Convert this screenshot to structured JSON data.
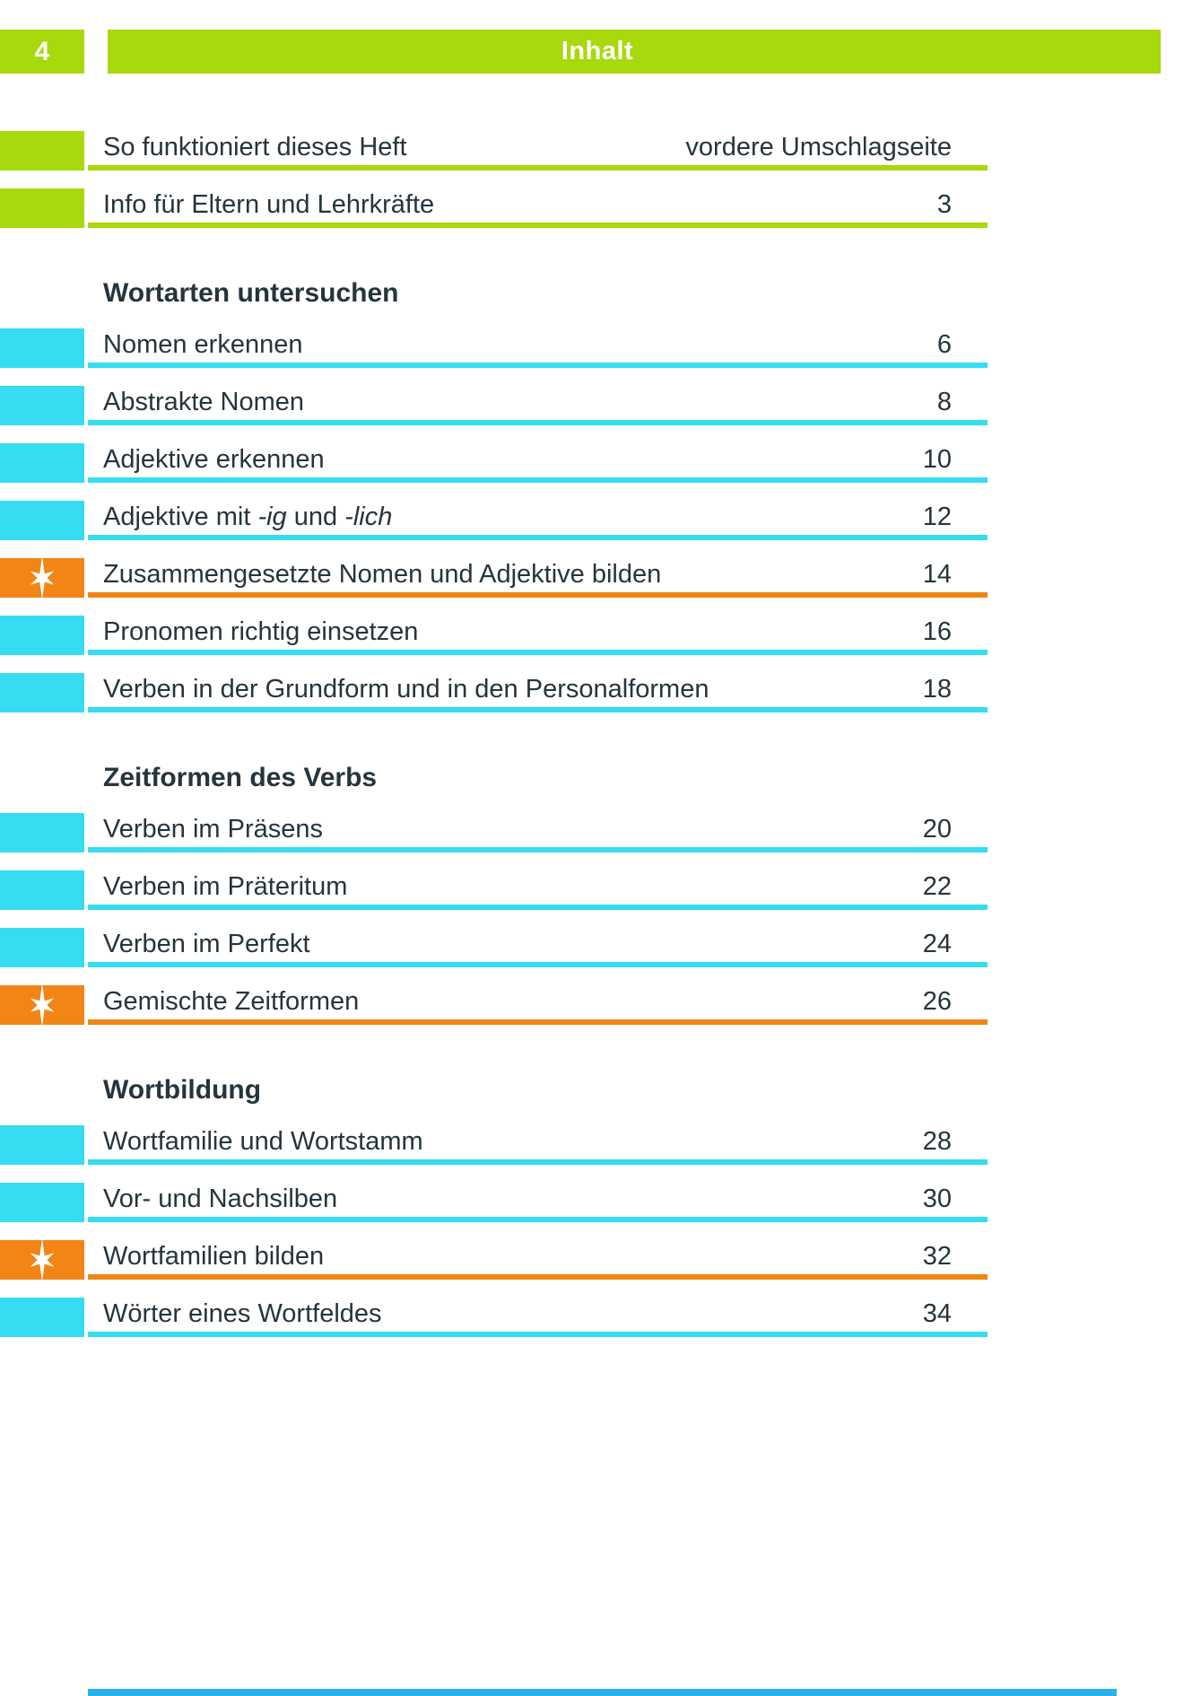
{
  "colors": {
    "green": "#a8d90c",
    "cyan": "#36dcf1",
    "orange": "#f18616",
    "footer_blue": "#2ab2e8",
    "text": "#26343c",
    "white": "#ffffff"
  },
  "header": {
    "page_number": "4",
    "title": "Inhalt"
  },
  "icons": {
    "star": {
      "name": "star-icon",
      "meaning": "sparkle star marking mixed-exercise pages"
    }
  },
  "toc": {
    "intro_rows": [
      {
        "color": "green",
        "star": false,
        "parts": [
          {
            "text": "So funktioniert dieses Heft",
            "italic": false
          }
        ],
        "page": "vordere Umschlagseite"
      },
      {
        "color": "green",
        "star": false,
        "parts": [
          {
            "text": "Info für Eltern und Lehrkräfte",
            "italic": false
          }
        ],
        "page": "3"
      }
    ],
    "sections": [
      {
        "heading": "Wortarten untersuchen",
        "rows": [
          {
            "color": "cyan",
            "star": false,
            "parts": [
              {
                "text": "Nomen erkennen",
                "italic": false
              }
            ],
            "page": "6"
          },
          {
            "color": "cyan",
            "star": false,
            "parts": [
              {
                "text": "Abstrakte Nomen",
                "italic": false
              }
            ],
            "page": "8"
          },
          {
            "color": "cyan",
            "star": false,
            "parts": [
              {
                "text": "Adjektive erkennen",
                "italic": false
              }
            ],
            "page": "10"
          },
          {
            "color": "cyan",
            "star": false,
            "parts": [
              {
                "text": "Adjektive mit ",
                "italic": false
              },
              {
                "text": "-ig",
                "italic": true
              },
              {
                "text": " und ",
                "italic": false
              },
              {
                "text": "-lich",
                "italic": true
              }
            ],
            "page": "12"
          },
          {
            "color": "orange",
            "star": true,
            "parts": [
              {
                "text": "Zusammengesetzte Nomen und Adjektive bilden",
                "italic": false
              }
            ],
            "page": "14"
          },
          {
            "color": "cyan",
            "star": false,
            "parts": [
              {
                "text": "Pronomen richtig einsetzen",
                "italic": false
              }
            ],
            "page": "16"
          },
          {
            "color": "cyan",
            "star": false,
            "parts": [
              {
                "text": "Verben in der Grundform und in den Personalformen",
                "italic": false
              }
            ],
            "page": "18"
          }
        ]
      },
      {
        "heading": "Zeitformen des Verbs",
        "rows": [
          {
            "color": "cyan",
            "star": false,
            "parts": [
              {
                "text": "Verben im Präsens",
                "italic": false
              }
            ],
            "page": "20"
          },
          {
            "color": "cyan",
            "star": false,
            "parts": [
              {
                "text": "Verben im Präteritum",
                "italic": false
              }
            ],
            "page": "22"
          },
          {
            "color": "cyan",
            "star": false,
            "parts": [
              {
                "text": "Verben im Perfekt",
                "italic": false
              }
            ],
            "page": "24"
          },
          {
            "color": "orange",
            "star": true,
            "parts": [
              {
                "text": "Gemischte Zeitformen",
                "italic": false
              }
            ],
            "page": "26"
          }
        ]
      },
      {
        "heading": "Wortbildung",
        "rows": [
          {
            "color": "cyan",
            "star": false,
            "parts": [
              {
                "text": "Wortfamilie und Wortstamm",
                "italic": false
              }
            ],
            "page": "28"
          },
          {
            "color": "cyan",
            "star": false,
            "parts": [
              {
                "text": "Vor- und Nachsilben",
                "italic": false
              }
            ],
            "page": "30"
          },
          {
            "color": "orange",
            "star": true,
            "parts": [
              {
                "text": "Wortfamilien bilden",
                "italic": false
              }
            ],
            "page": "32"
          },
          {
            "color": "cyan",
            "star": false,
            "parts": [
              {
                "text": "Wörter eines Wortfeldes",
                "italic": false
              }
            ],
            "page": "34"
          }
        ]
      }
    ]
  }
}
